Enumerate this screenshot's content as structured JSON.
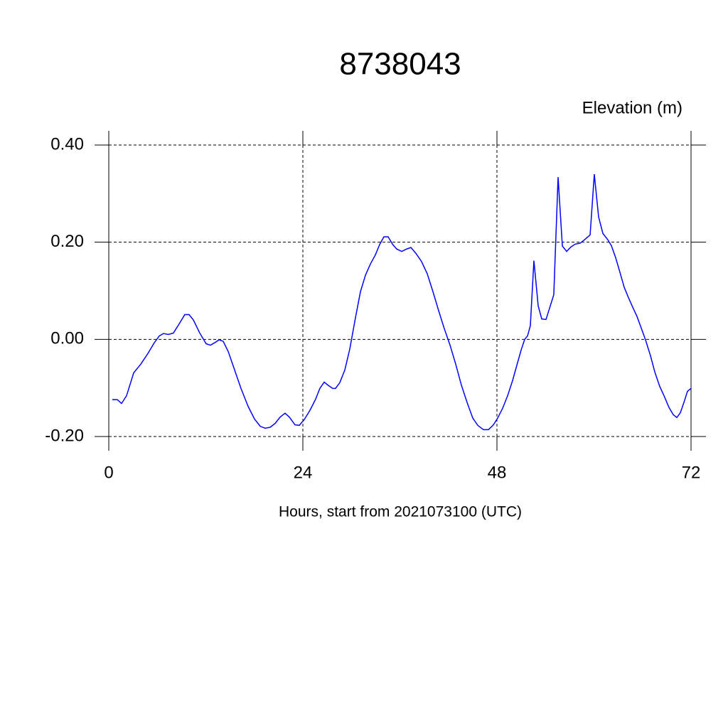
{
  "chart_data": {
    "type": "line",
    "title": "8738043",
    "y_label": "Elevation (m)",
    "x_label": "Hours, start from 2021073100 (UTC)",
    "xlim": [
      0,
      72
    ],
    "xticks": [
      0,
      24,
      48,
      72
    ],
    "ylim": [
      -0.2,
      0.4
    ],
    "yticks": [
      {
        "value": -0.2,
        "label": "-0.20"
      },
      {
        "value": 0,
        "label": "0.00"
      },
      {
        "value": 0.2,
        "label": "0.20"
      },
      {
        "value": 0.4,
        "label": "0.40"
      }
    ],
    "grid": true,
    "series": [
      {
        "color": "#0000ff",
        "x": [
          0.44,
          1.05,
          1.58,
          2.2,
          3.08,
          3.96,
          4.84,
          5.63,
          6.24,
          6.77,
          7.38,
          7.99,
          8.6,
          9.4,
          9.93,
          10.46,
          11.25,
          12.04,
          12.57,
          13.19,
          13.63,
          14.15,
          14.77,
          15.56,
          16.35,
          17.23,
          18.02,
          18.73,
          19.34,
          19.96,
          20.57,
          21.19,
          21.8,
          22.33,
          23.03,
          23.56,
          24.18,
          24.88,
          25.58,
          26.1,
          26.64,
          27.16,
          27.69,
          28.04,
          28.57,
          29.19,
          29.8,
          30.5,
          31.12,
          31.74,
          32.35,
          32.97,
          33.49,
          34.02,
          34.55,
          35.08,
          35.6,
          36.22,
          36.84,
          37.36,
          37.98,
          38.68,
          39.38,
          40.09,
          40.79,
          41.49,
          42.2,
          42.9,
          43.6,
          44.31,
          45.01,
          45.63,
          46.33,
          46.95,
          47.56,
          48.09,
          48.7,
          49.32,
          49.93,
          50.55,
          50.99,
          51.43,
          51.78,
          52.13,
          52.57,
          53.1,
          53.54,
          54.07,
          55.03,
          55.56,
          56.09,
          56.62,
          57.14,
          57.67,
          58.29,
          58.9,
          59.52,
          60.04,
          60.57,
          61.1,
          61.71,
          62.15,
          62.68,
          63.21,
          63.74,
          64.26,
          64.79,
          65.32,
          65.85,
          66.37,
          66.99,
          67.52,
          68.13,
          68.66,
          69.27,
          69.8,
          70.24,
          70.68,
          71.12,
          71.56,
          72.0
        ],
        "values": [
          -0.124,
          -0.124,
          -0.132,
          -0.116,
          -0.069,
          -0.051,
          -0.029,
          -0.007,
          0.007,
          0.012,
          0.01,
          0.013,
          0.029,
          0.051,
          0.051,
          0.04,
          0.013,
          -0.009,
          -0.012,
          -0.006,
          -0.001,
          -0.004,
          -0.025,
          -0.063,
          -0.101,
          -0.138,
          -0.164,
          -0.179,
          -0.183,
          -0.181,
          -0.173,
          -0.16,
          -0.152,
          -0.16,
          -0.176,
          -0.177,
          -0.165,
          -0.146,
          -0.123,
          -0.101,
          -0.088,
          -0.095,
          -0.101,
          -0.101,
          -0.089,
          -0.063,
          -0.02,
          0.044,
          0.098,
          0.132,
          0.155,
          0.174,
          0.195,
          0.211,
          0.211,
          0.196,
          0.186,
          0.181,
          0.186,
          0.189,
          0.177,
          0.16,
          0.135,
          0.098,
          0.059,
          0.022,
          -0.012,
          -0.051,
          -0.094,
          -0.13,
          -0.162,
          -0.177,
          -0.186,
          -0.186,
          -0.176,
          -0.162,
          -0.142,
          -0.116,
          -0.085,
          -0.048,
          -0.022,
          0.0,
          0.007,
          0.028,
          0.162,
          0.069,
          0.042,
          0.041,
          0.092,
          0.334,
          0.192,
          0.181,
          0.19,
          0.196,
          0.198,
          0.206,
          0.215,
          0.34,
          0.252,
          0.218,
          0.205,
          0.193,
          0.168,
          0.138,
          0.107,
          0.086,
          0.066,
          0.047,
          0.023,
          -0.001,
          -0.034,
          -0.067,
          -0.097,
          -0.116,
          -0.14,
          -0.155,
          -0.161,
          -0.151,
          -0.13,
          -0.107,
          -0.101
        ]
      }
    ]
  }
}
